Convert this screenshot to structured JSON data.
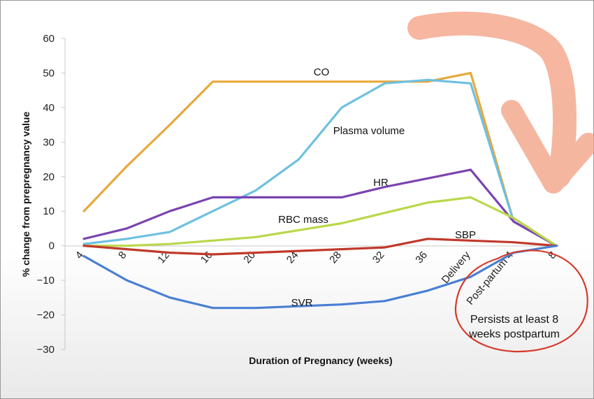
{
  "chart_data": {
    "type": "line",
    "xlabel": "Duration of Pregnancy (weeks)",
    "ylabel": "% change from  prepregnancy value",
    "ylim": [
      -30,
      60
    ],
    "yticks": [
      60,
      50,
      40,
      30,
      20,
      10,
      0,
      -10,
      -20,
      -30
    ],
    "categories": [
      "4",
      "8",
      "12",
      "16",
      "20",
      "24",
      "28",
      "32",
      "36",
      "Delivery",
      "Post-partum 4",
      "8"
    ],
    "grid": false,
    "series": [
      {
        "name": "CO",
        "color": "#e8a838",
        "values": [
          10,
          23,
          35,
          47.5,
          47.5,
          47.5,
          47.5,
          47.5,
          47.5,
          50,
          7,
          0
        ]
      },
      {
        "name": "Plasma volume",
        "color": "#6ec0e0",
        "values": [
          0.5,
          2,
          4,
          10,
          16,
          25,
          40,
          47,
          48,
          47,
          7,
          0
        ]
      },
      {
        "name": "HR",
        "color": "#7a44b0",
        "values": [
          2,
          5,
          10,
          14,
          14,
          14,
          14,
          17,
          19.5,
          22,
          7,
          0
        ]
      },
      {
        "name": "RBC mass",
        "color": "#b9d84a",
        "values": [
          0,
          0,
          0.5,
          1.5,
          2.5,
          4.5,
          6.5,
          9.5,
          12.5,
          14,
          8,
          0
        ]
      },
      {
        "name": "SBP",
        "color": "#c0392b",
        "values": [
          0,
          -1,
          -2,
          -2.5,
          -2,
          -1.5,
          -1,
          -0.5,
          2,
          1.5,
          1,
          0
        ]
      },
      {
        "name": "SVR",
        "color": "#4a7fd4",
        "values": [
          -3,
          -10,
          -15,
          -18,
          -18,
          -17.5,
          -17,
          -16,
          -13,
          -9,
          -2,
          0
        ]
      }
    ],
    "annotation": "Persists at least 8 weeks postpartum"
  }
}
